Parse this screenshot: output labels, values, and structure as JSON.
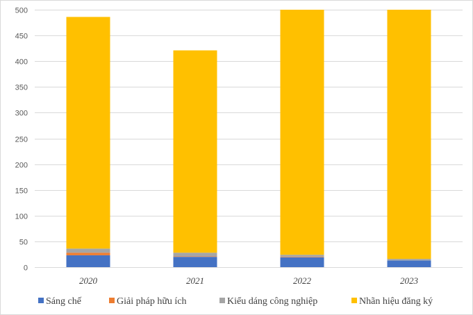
{
  "chart_data": {
    "type": "bar",
    "stacked": true,
    "title": "",
    "xlabel": "",
    "ylabel": "",
    "categories": [
      "2020",
      "2021",
      "2022",
      "2023"
    ],
    "ylim": [
      0,
      500
    ],
    "yticks": [
      0,
      50,
      100,
      150,
      200,
      250,
      300,
      350,
      400,
      450,
      500
    ],
    "grid": true,
    "legend_position": "bottom",
    "series": [
      {
        "name": "Sáng chế",
        "color": "#4472C4",
        "values": [
          23,
          20,
          19,
          13
        ]
      },
      {
        "name": "Giải pháp hữu ích",
        "color": "#ED7D31",
        "values": [
          5,
          1,
          1,
          0
        ]
      },
      {
        "name": "Kiểu dáng công nghiệp",
        "color": "#A5A5A5",
        "values": [
          8,
          7,
          4,
          3
        ]
      },
      {
        "name": "Nhãn hiệu đăng ký",
        "color": "#FFC000",
        "values": [
          450,
          393,
          476,
          484
        ]
      }
    ]
  }
}
